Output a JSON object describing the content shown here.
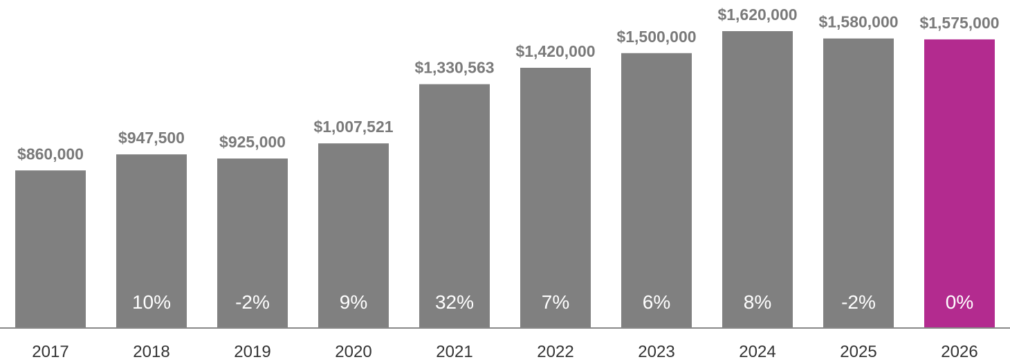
{
  "chart_data": {
    "type": "bar",
    "title": "",
    "xlabel": "",
    "ylabel": "",
    "categories": [
      "2017",
      "2018",
      "2019",
      "2020",
      "2021",
      "2022",
      "2023",
      "2024",
      "2025",
      "2026"
    ],
    "values": [
      860000,
      947500,
      925000,
      1007521,
      1330563,
      1420000,
      1500000,
      1620000,
      1580000,
      1575000
    ],
    "value_labels": [
      "$860,000",
      "$947,500",
      "$925,000",
      "$1,007,521",
      "$1,330,563",
      "$1,420,000",
      "$1,500,000",
      "$1,620,000",
      "$1,580,000",
      "$1,575,000"
    ],
    "change_labels": [
      "",
      "10%",
      "-2%",
      "9%",
      "32%",
      "7%",
      "6%",
      "8%",
      "-2%",
      "0%"
    ],
    "ylim": [
      0,
      1620000
    ],
    "grid": false,
    "legend": "none",
    "colors": {
      "bar": "#808080",
      "highlight": "#b32b8f",
      "value_text": "#7a7a7a",
      "change_text": "#ffffff",
      "axis": "#888888",
      "year_text": "#333333"
    },
    "highlight_index": 9
  }
}
